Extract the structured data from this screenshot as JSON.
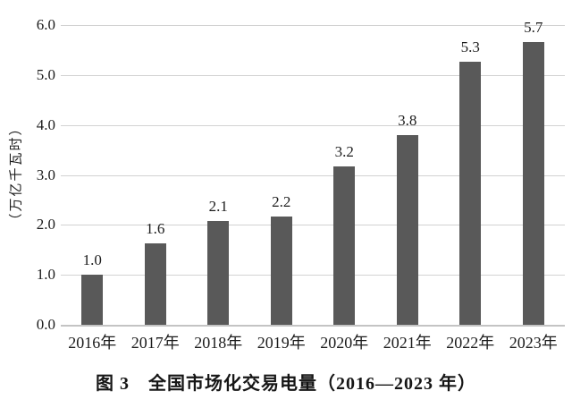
{
  "figure": {
    "caption": "图 3　全国市场化交易电量（2016—2023 年）",
    "y_axis_title": "（万亿千瓦时）"
  },
  "chart_data": {
    "type": "bar",
    "title": "图 3　全国市场化交易电量（2016—2023 年）",
    "xlabel": "",
    "ylabel": "（万亿千瓦时）",
    "categories": [
      "2016年",
      "2017年",
      "2018年",
      "2019年",
      "2020年",
      "2021年",
      "2022年",
      "2023年"
    ],
    "values": [
      1.0,
      1.6,
      2.1,
      2.2,
      3.2,
      3.8,
      5.3,
      5.7
    ],
    "data_labels": [
      "1.0",
      "1.6",
      "2.1",
      "2.2",
      "3.2",
      "3.8",
      "5.3",
      "5.7"
    ],
    "plotted_values": [
      1.0,
      1.63,
      2.07,
      2.17,
      3.17,
      3.79,
      5.27,
      5.66
    ],
    "ylim": [
      0,
      6
    ],
    "ytick_interval": 1.0,
    "yticks": [
      "0.0",
      "1.0",
      "2.0",
      "3.0",
      "4.0",
      "5.0",
      "6.0"
    ],
    "grid": true,
    "legend_position": "none",
    "bar_color": "#595959",
    "gridline_color": "#d2d2d2",
    "text_color": "#1c1c1c"
  }
}
